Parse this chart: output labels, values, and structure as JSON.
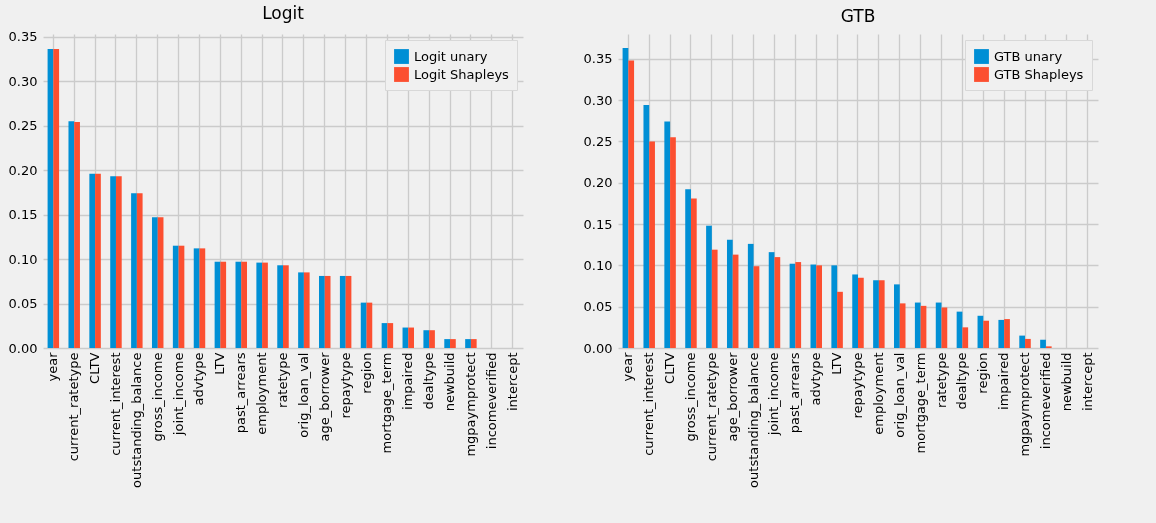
{
  "chart_data": [
    {
      "type": "bar",
      "title": "Logit",
      "categories": [
        "year",
        "current_ratetype",
        "CLTV",
        "current_interest",
        "outstanding_balance",
        "gross_income",
        "joint_income",
        "advtype",
        "LTV",
        "past_arrears",
        "employment",
        "ratetype",
        "orig_loan_val",
        "age_borrower",
        "repaytype",
        "region",
        "mortgage_term",
        "impaired",
        "dealtype",
        "newbuild",
        "mgpaymprotect",
        "incomeverified",
        "intercept"
      ],
      "series": [
        {
          "name": "Logit unary",
          "color": "#008fd5",
          "values": [
            0.336,
            0.255,
            0.196,
            0.193,
            0.174,
            0.147,
            0.115,
            0.112,
            0.097,
            0.097,
            0.096,
            0.093,
            0.085,
            0.081,
            0.081,
            0.051,
            0.028,
            0.023,
            0.02,
            0.01,
            0.01,
            0,
            0
          ]
        },
        {
          "name": "Logit Shapleys",
          "color": "#fc4f30",
          "values": [
            0.336,
            0.254,
            0.196,
            0.193,
            0.174,
            0.147,
            0.115,
            0.112,
            0.097,
            0.097,
            0.096,
            0.093,
            0.085,
            0.081,
            0.081,
            0.051,
            0.028,
            0.023,
            0.02,
            0.01,
            0.01,
            0,
            0
          ]
        }
      ],
      "ylim": [
        0,
        0.353
      ],
      "yticks": [
        {
          "value": 0,
          "label": "0.00"
        },
        0.05,
        {
          "value": 0.1,
          "label": "0.10"
        },
        0.15,
        {
          "value": 0.2,
          "label": "0.20"
        },
        0.25,
        {
          "value": 0.3,
          "label": "0.30"
        },
        0.35
      ],
      "grid": true,
      "legend": "top right"
    },
    {
      "type": "bar",
      "title": "GTB",
      "categories": [
        "year",
        "current_interest",
        "CLTV",
        "gross_income",
        "current_ratetype",
        "age_borrower",
        "outstanding_balance",
        "joint_income",
        "past_arrears",
        "advtype",
        "LTV",
        "repaytype",
        "employment",
        "orig_loan_val",
        "mortgage_term",
        "ratetype",
        "dealtype",
        "region",
        "impaired",
        "mgpaymprotect",
        "incomeverified",
        "newbuild",
        "intercept"
      ],
      "series": [
        {
          "name": "GTB unary",
          "color": "#008fd5",
          "values": [
            0.363,
            0.294,
            0.274,
            0.192,
            0.148,
            0.131,
            0.126,
            0.116,
            0.102,
            0.101,
            0.1,
            0.089,
            0.082,
            0.077,
            0.055,
            0.055,
            0.044,
            0.039,
            0.034,
            0.015,
            0.01,
            0,
            0
          ]
        },
        {
          "name": "GTB Shapleys",
          "color": "#fc4f30",
          "values": [
            0.348,
            0.25,
            0.255,
            0.181,
            0.119,
            0.113,
            0.099,
            0.11,
            0.104,
            0.1,
            0.068,
            0.085,
            0.082,
            0.054,
            0.051,
            0.049,
            0.025,
            0.033,
            0.035,
            0.011,
            0.002,
            0,
            0
          ]
        }
      ],
      "ylim": [
        0,
        0.38
      ],
      "yticks": [
        {
          "value": 0,
          "label": "0.00"
        },
        0.05,
        {
          "value": 0.1,
          "label": "0.10"
        },
        0.15,
        {
          "value": 0.2,
          "label": "0.20"
        },
        0.25,
        {
          "value": 0.3,
          "label": "0.30"
        },
        0.35
      ],
      "grid": true,
      "legend": "top right"
    }
  ]
}
